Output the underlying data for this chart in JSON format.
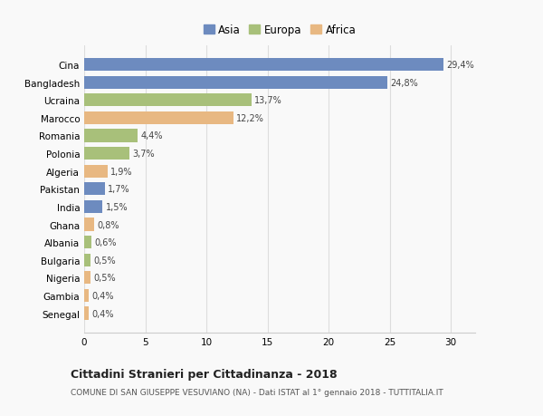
{
  "categories": [
    "Senegal",
    "Gambia",
    "Nigeria",
    "Bulgaria",
    "Albania",
    "Ghana",
    "India",
    "Pakistan",
    "Algeria",
    "Polonia",
    "Romania",
    "Marocco",
    "Ucraina",
    "Bangladesh",
    "Cina"
  ],
  "values": [
    0.4,
    0.4,
    0.5,
    0.5,
    0.6,
    0.8,
    1.5,
    1.7,
    1.9,
    3.7,
    4.4,
    12.2,
    13.7,
    24.8,
    29.4
  ],
  "labels": [
    "0,4%",
    "0,4%",
    "0,5%",
    "0,5%",
    "0,6%",
    "0,8%",
    "1,5%",
    "1,7%",
    "1,9%",
    "3,7%",
    "4,4%",
    "12,2%",
    "13,7%",
    "24,8%",
    "29,4%"
  ],
  "continents": [
    "Africa",
    "Africa",
    "Africa",
    "Europa",
    "Europa",
    "Africa",
    "Asia",
    "Asia",
    "Africa",
    "Europa",
    "Europa",
    "Africa",
    "Europa",
    "Asia",
    "Asia"
  ],
  "colors": {
    "Asia": "#6d8bbf",
    "Europa": "#a8c07a",
    "Africa": "#e8b882"
  },
  "legend_labels": [
    "Asia",
    "Europa",
    "Africa"
  ],
  "legend_colors": [
    "#6d8bbf",
    "#a8c07a",
    "#e8b882"
  ],
  "xlim": [
    0,
    32
  ],
  "xticks": [
    0,
    5,
    10,
    15,
    20,
    25,
    30
  ],
  "title": "Cittadini Stranieri per Cittadinanza - 2018",
  "subtitle": "COMUNE DI SAN GIUSEPPE VESUVIANO (NA) - Dati ISTAT al 1° gennaio 2018 - TUTTITALIA.IT",
  "bg_color": "#f9f9f9",
  "bar_height": 0.72,
  "grid_color": "#dddddd"
}
